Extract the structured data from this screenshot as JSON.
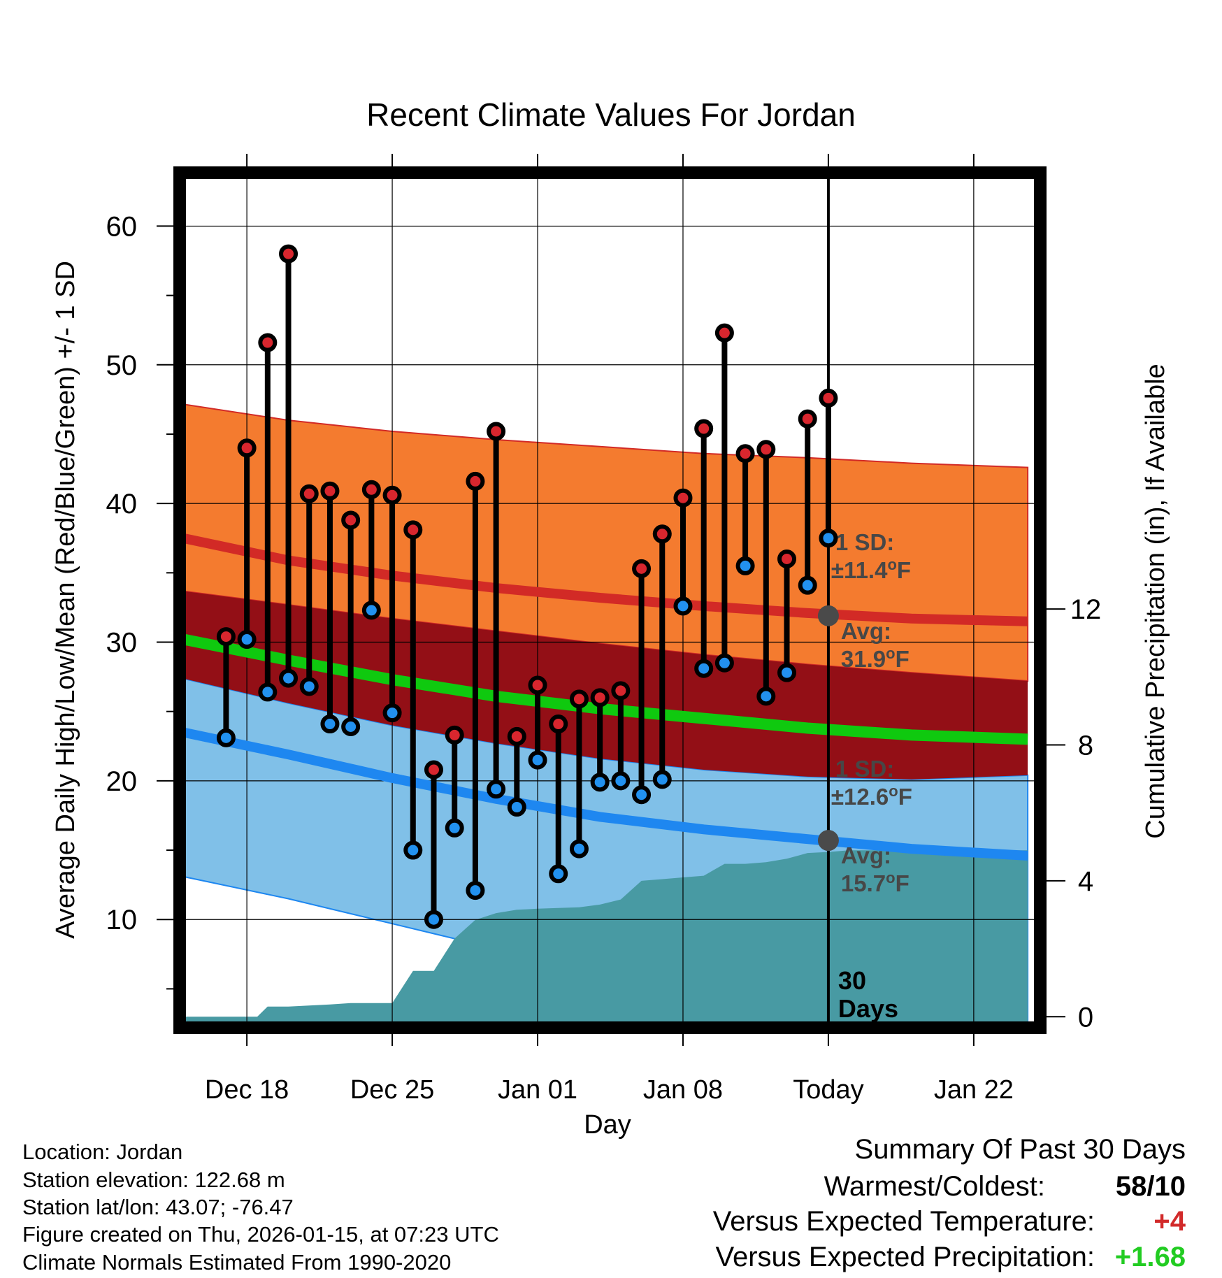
{
  "chart_data": {
    "type": "line",
    "title": "Recent Climate Values For Jordan",
    "xlabel": "Day",
    "ylabel": "Average Daily High/Low/Mean (Red/Blue/Green) +/- 1 SD",
    "y2label": "Cumulative Precipitation (in), If Available",
    "xlim": [
      -2,
      39
    ],
    "ylim": [
      2.5,
      63.5
    ],
    "y2lim": [
      -0.2,
      24.7
    ],
    "x_ticks": [
      {
        "x": 1,
        "label": "Dec 18"
      },
      {
        "x": 8,
        "label": "Dec 25"
      },
      {
        "x": 15,
        "label": "Jan 01"
      },
      {
        "x": 22,
        "label": "Jan 08"
      },
      {
        "x": 29,
        "label": "Today"
      },
      {
        "x": 36,
        "label": "Jan 22"
      }
    ],
    "y_ticks": [
      10,
      20,
      30,
      40,
      50,
      60
    ],
    "y2_ticks": [
      0,
      4,
      8,
      12
    ],
    "normal_x": [
      -2.7,
      3,
      8,
      13,
      18,
      23,
      28,
      33,
      38.6
    ],
    "normal_high_mean": [
      37.7,
      35.9,
      34.8,
      33.9,
      33.2,
      32.6,
      32.1,
      31.7,
      31.5
    ],
    "normal_high_upper": [
      47.3,
      46.0,
      45.2,
      44.6,
      44.1,
      43.6,
      43.3,
      42.9,
      42.6
    ],
    "normal_high_lower": [
      33.8,
      32.7,
      31.7,
      30.8,
      29.9,
      29.1,
      28.4,
      27.8,
      27.2
    ],
    "normal_mean": [
      30.4,
      28.7,
      27.3,
      26.1,
      25.2,
      24.5,
      23.8,
      23.3,
      23.0
    ],
    "normal_low_upper": [
      27.6,
      25.6,
      24.0,
      22.7,
      21.6,
      20.8,
      20.3,
      20.1,
      20.4
    ],
    "normal_low_mean": [
      23.7,
      21.9,
      20.2,
      18.7,
      17.4,
      16.5,
      15.8,
      15.1,
      14.6
    ],
    "normal_low_lower": [
      13.3,
      11.5,
      9.7,
      7.9,
      6.3,
      4.8,
      3.5,
      2.3,
      1.1
    ],
    "daily_high": [
      30.4,
      44.0,
      51.6,
      58.0,
      40.7,
      40.9,
      38.8,
      41.0,
      40.6,
      38.1,
      20.8,
      23.3,
      41.6,
      45.2,
      23.2,
      26.9,
      24.1,
      25.9,
      26.0,
      26.5,
      35.3,
      37.8,
      40.4,
      45.4,
      52.3,
      43.6,
      43.9,
      36.0,
      46.1,
      47.6
    ],
    "daily_low": [
      23.1,
      30.2,
      26.4,
      27.4,
      26.8,
      24.1,
      23.9,
      32.3,
      24.9,
      15.0,
      10.0,
      16.6,
      12.1,
      19.4,
      18.1,
      21.5,
      13.3,
      15.1,
      19.9,
      20.0,
      19.0,
      20.1,
      32.6,
      28.1,
      28.5,
      35.5,
      26.1,
      27.8,
      34.1,
      37.5
    ],
    "precip_x": [
      -2.7,
      0,
      1.5,
      2,
      3,
      4,
      5,
      6,
      7,
      8,
      9,
      10,
      11,
      12,
      13,
      14,
      15,
      16,
      17,
      18,
      19,
      20,
      21,
      22,
      23,
      24,
      25,
      26,
      27,
      28,
      29,
      30,
      38.6
    ],
    "precip": [
      0,
      0,
      0,
      0.3,
      0.3,
      0.33,
      0.36,
      0.4,
      0.4,
      0.4,
      1.35,
      1.35,
      2.3,
      2.85,
      3.05,
      3.15,
      3.18,
      3.2,
      3.22,
      3.3,
      3.45,
      4.0,
      4.05,
      4.1,
      4.15,
      4.5,
      4.5,
      4.55,
      4.65,
      4.82,
      4.85,
      4.9,
      4.9
    ],
    "high_annotation": {
      "sd_label": "1 SD:",
      "sd_value": "±11.4",
      "avg_label": "Avg:",
      "avg_value": "31.9",
      "unit": "°F",
      "avg": 31.9
    },
    "low_annotation": {
      "sd_label": "1 SD:",
      "sd_value": "±12.6",
      "avg_label": "Avg:",
      "avg_value": "15.7",
      "unit": "°F",
      "avg": 15.7
    },
    "today_label": {
      "line1": "30",
      "line2": "Days"
    },
    "today_x": 29
  },
  "colors": {
    "high_band": "#f47b2f",
    "high_line": "#d22a26",
    "mean_band": "#930f16",
    "mean_line": "#0fc90f",
    "low_band": "#80c0e8",
    "low_line": "#1e87f0",
    "precip": "#489aa3",
    "high_dot": "#d8262e",
    "low_dot": "#2291ef",
    "annot": "#474747",
    "annot_dot": "#4a4a4a",
    "warm": "#d22a2a",
    "wet": "#22cc22"
  },
  "footer": {
    "location": "Location: Jordan",
    "elevation": "Station elevation: 122.68 m",
    "latlon": "Station lat/lon: 43.07; -76.47",
    "created": "Figure created on Thu, 2026-01-15, at 07:23 UTC",
    "normals": "Climate Normals Estimated From 1990-2020"
  },
  "summary": {
    "title": "Summary Of Past 30 Days",
    "warm_cold_label": "Warmest/Coldest:",
    "warm_cold_value": "58/10",
    "temp_label": "Versus Expected Temperature:",
    "temp_value": "+4",
    "precip_label": "Versus Expected Precipitation:",
    "precip_value": "+1.68"
  }
}
